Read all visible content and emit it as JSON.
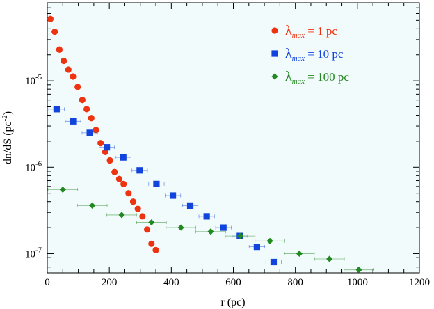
{
  "chart_data": {
    "type": "scatter",
    "xlabel": "r (pc)",
    "ylabel_main": "dn/dS (pc",
    "ylabel_sup": "-2",
    "ylabel_end": ")",
    "xlim": [
      0,
      1200
    ],
    "ylim": [
      6e-08,
      8e-05
    ],
    "yscale": "log",
    "plot_background": "#f2fbfb",
    "x_ticks": [
      "0",
      "200",
      "400",
      "600",
      "800",
      "1000",
      "1200"
    ],
    "y_ticks": [
      {
        "base": "10",
        "exp": "-5",
        "value": 1e-05
      },
      {
        "base": "10",
        "exp": "-6",
        "value": 1e-06
      },
      {
        "base": "10",
        "exp": "-7",
        "value": 1e-07
      }
    ],
    "legend_position": "top-right",
    "series": [
      {
        "name": "1 pc",
        "symbol": "λ",
        "subscript": "max",
        "eq": "=",
        "marker": "circle",
        "color": "#ee3311",
        "points": [
          {
            "x": 10,
            "y": 5.2e-05
          },
          {
            "x": 24,
            "y": 3.7e-05
          },
          {
            "x": 39,
            "y": 2.3e-05
          },
          {
            "x": 53,
            "y": 1.7e-05
          },
          {
            "x": 68,
            "y": 1.35e-05
          },
          {
            "x": 83,
            "y": 1.12e-05
          },
          {
            "x": 98,
            "y": 8.5e-06
          },
          {
            "x": 113,
            "y": 6e-06
          },
          {
            "x": 127,
            "y": 4.7e-06
          },
          {
            "x": 142,
            "y": 3.7e-06
          },
          {
            "x": 157,
            "y": 2.7e-06
          },
          {
            "x": 172,
            "y": 1.9e-06
          },
          {
            "x": 187,
            "y": 1.5e-06
          },
          {
            "x": 202,
            "y": 1.2e-06
          },
          {
            "x": 217,
            "y": 8.8e-07
          },
          {
            "x": 232,
            "y": 7.3e-07
          },
          {
            "x": 246,
            "y": 6.4e-07
          },
          {
            "x": 262,
            "y": 5e-07
          },
          {
            "x": 277,
            "y": 4e-07
          },
          {
            "x": 292,
            "y": 3.3e-07
          },
          {
            "x": 307,
            "y": 2.7e-07
          },
          {
            "x": 322,
            "y": 1.9e-07
          },
          {
            "x": 336,
            "y": 1.3e-07
          },
          {
            "x": 350,
            "y": 1.1e-07
          }
        ]
      },
      {
        "name": "10 pc",
        "symbol": "λ",
        "subscript": "max",
        "eq": "=",
        "marker": "square",
        "color": "#1144dd",
        "points": [
          {
            "x": 30,
            "y": 4.7e-06,
            "xerr": 25
          },
          {
            "x": 83,
            "y": 3.4e-06,
            "xerr": 25
          },
          {
            "x": 137,
            "y": 2.5e-06,
            "xerr": 25
          },
          {
            "x": 192,
            "y": 1.7e-06,
            "xerr": 25
          },
          {
            "x": 245,
            "y": 1.3e-06,
            "xerr": 25
          },
          {
            "x": 298,
            "y": 9.2e-07,
            "xerr": 25
          },
          {
            "x": 352,
            "y": 6.4e-07,
            "xerr": 25
          },
          {
            "x": 405,
            "y": 4.7e-07,
            "xerr": 25
          },
          {
            "x": 461,
            "y": 3.6e-07,
            "xerr": 25
          },
          {
            "x": 514,
            "y": 2.7e-07,
            "xerr": 25
          },
          {
            "x": 568,
            "y": 2e-07,
            "xerr": 25
          },
          {
            "x": 621,
            "y": 1.6e-07,
            "xerr": 25
          },
          {
            "x": 676,
            "y": 1.2e-07,
            "xerr": 25
          },
          {
            "x": 730,
            "y": 8e-08,
            "xerr": 25
          }
        ]
      },
      {
        "name": "100 pc",
        "symbol": "λ",
        "subscript": "max",
        "eq": "=",
        "marker": "diamond",
        "color": "#228822",
        "points": [
          {
            "x": 50,
            "y": 5.5e-07,
            "xerr": 48
          },
          {
            "x": 145,
            "y": 3.6e-07,
            "xerr": 48
          },
          {
            "x": 240,
            "y": 2.8e-07,
            "xerr": 48
          },
          {
            "x": 336,
            "y": 2.3e-07,
            "xerr": 48
          },
          {
            "x": 431,
            "y": 2e-07,
            "xerr": 48
          },
          {
            "x": 527,
            "y": 1.8e-07,
            "xerr": 48
          },
          {
            "x": 622,
            "y": 1.6e-07,
            "xerr": 48
          },
          {
            "x": 718,
            "y": 1.4e-07,
            "xerr": 48
          },
          {
            "x": 813,
            "y": 1e-07,
            "xerr": 48
          },
          {
            "x": 910,
            "y": 8.7e-08,
            "xerr": 48
          },
          {
            "x": 1005,
            "y": 6.5e-08,
            "xerr": 48
          }
        ]
      }
    ]
  }
}
